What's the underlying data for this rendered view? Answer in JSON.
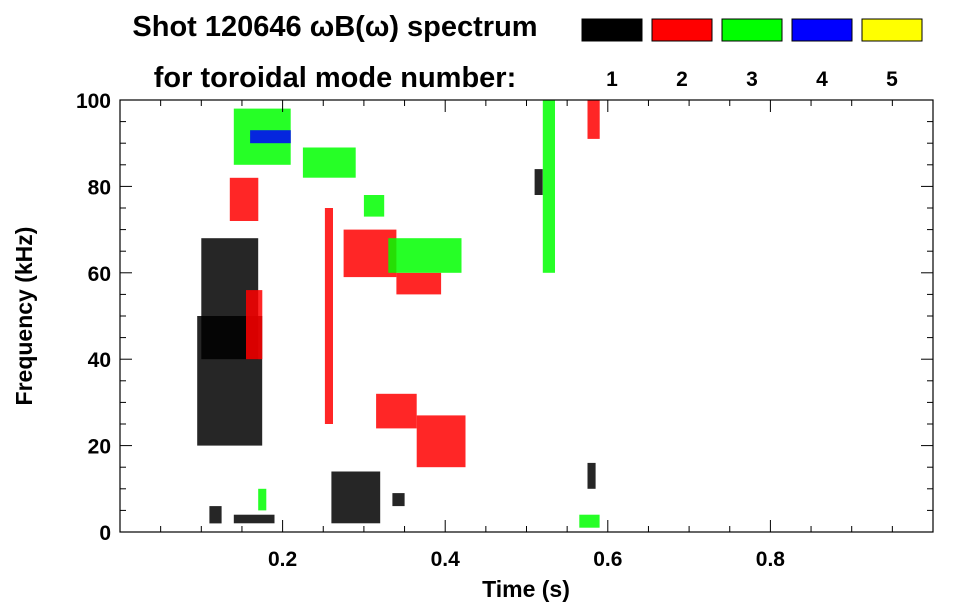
{
  "chart_data": {
    "type": "heatmap",
    "title": "Shot 120646 ωB(ω) spectrum",
    "subtitle": "for toroidal mode number:",
    "xlabel": "Time (s)",
    "ylabel": "Frequency (kHz)",
    "xlim": [
      0.0,
      1.0
    ],
    "ylim": [
      0,
      100
    ],
    "x_ticks": [
      0.2,
      0.4,
      0.6,
      0.8
    ],
    "x_tick_labels": [
      "0.2",
      "0.4",
      "0.6",
      "0.8"
    ],
    "y_ticks": [
      0,
      20,
      40,
      60,
      80,
      100
    ],
    "y_tick_labels": [
      "0",
      "20",
      "40",
      "60",
      "80",
      "100"
    ],
    "legend_placement": "top-right",
    "legend": [
      {
        "mode": "1",
        "color": "#000000"
      },
      {
        "mode": "2",
        "color": "#ff0000"
      },
      {
        "mode": "3",
        "color": "#00ff00"
      },
      {
        "mode": "4",
        "color": "#0000ff"
      },
      {
        "mode": "5",
        "color": "#ffff00"
      }
    ],
    "regions": [
      {
        "mode": "1",
        "color": "#000000",
        "t": [
          0.1,
          0.17
        ],
        "f": [
          40,
          68
        ]
      },
      {
        "mode": "1",
        "color": "#000000",
        "t": [
          0.095,
          0.175
        ],
        "f": [
          20,
          50
        ]
      },
      {
        "mode": "1",
        "color": "#000000",
        "t": [
          0.11,
          0.125
        ],
        "f": [
          2,
          6
        ]
      },
      {
        "mode": "1",
        "color": "#000000",
        "t": [
          0.14,
          0.19
        ],
        "f": [
          2,
          4
        ]
      },
      {
        "mode": "1",
        "color": "#000000",
        "t": [
          0.26,
          0.32
        ],
        "f": [
          2,
          14
        ]
      },
      {
        "mode": "1",
        "color": "#000000",
        "t": [
          0.335,
          0.35
        ],
        "f": [
          6,
          9
        ]
      },
      {
        "mode": "1",
        "color": "#000000",
        "t": [
          0.575,
          0.585
        ],
        "f": [
          10,
          16
        ]
      },
      {
        "mode": "1",
        "color": "#000000",
        "t": [
          0.51,
          0.52
        ],
        "f": [
          78,
          84
        ]
      },
      {
        "mode": "2",
        "color": "#ff0000",
        "t": [
          0.135,
          0.17
        ],
        "f": [
          72,
          82
        ]
      },
      {
        "mode": "2",
        "color": "#ff0000",
        "t": [
          0.155,
          0.175
        ],
        "f": [
          40,
          56
        ]
      },
      {
        "mode": "2",
        "color": "#ff0000",
        "t": [
          0.275,
          0.34
        ],
        "f": [
          59,
          70
        ]
      },
      {
        "mode": "2",
        "color": "#ff0000",
        "t": [
          0.34,
          0.395
        ],
        "f": [
          55,
          60
        ]
      },
      {
        "mode": "2",
        "color": "#ff0000",
        "t": [
          0.315,
          0.365
        ],
        "f": [
          24,
          32
        ]
      },
      {
        "mode": "2",
        "color": "#ff0000",
        "t": [
          0.365,
          0.425
        ],
        "f": [
          15,
          27
        ]
      },
      {
        "mode": "2",
        "color": "#ff0000",
        "t": [
          0.575,
          0.59
        ],
        "f": [
          91,
          100
        ]
      },
      {
        "mode": "2",
        "color": "#ff0000",
        "t": [
          0.252,
          0.262
        ],
        "f": [
          25,
          75
        ]
      },
      {
        "mode": "3",
        "color": "#00ff00",
        "t": [
          0.14,
          0.21
        ],
        "f": [
          85,
          98
        ]
      },
      {
        "mode": "3",
        "color": "#00ff00",
        "t": [
          0.225,
          0.29
        ],
        "f": [
          82,
          89
        ]
      },
      {
        "mode": "3",
        "color": "#00ff00",
        "t": [
          0.3,
          0.325
        ],
        "f": [
          73,
          78
        ]
      },
      {
        "mode": "3",
        "color": "#00ff00",
        "t": [
          0.33,
          0.42
        ],
        "f": [
          60,
          68
        ]
      },
      {
        "mode": "3",
        "color": "#00ff00",
        "t": [
          0.52,
          0.535
        ],
        "f": [
          60,
          100
        ]
      },
      {
        "mode": "3",
        "color": "#00ff00",
        "t": [
          0.17,
          0.18
        ],
        "f": [
          5,
          10
        ]
      },
      {
        "mode": "3",
        "color": "#00ff00",
        "t": [
          0.565,
          0.59
        ],
        "f": [
          1,
          4
        ]
      },
      {
        "mode": "4",
        "color": "#0000ff",
        "t": [
          0.16,
          0.21
        ],
        "f": [
          90,
          93
        ]
      }
    ]
  }
}
